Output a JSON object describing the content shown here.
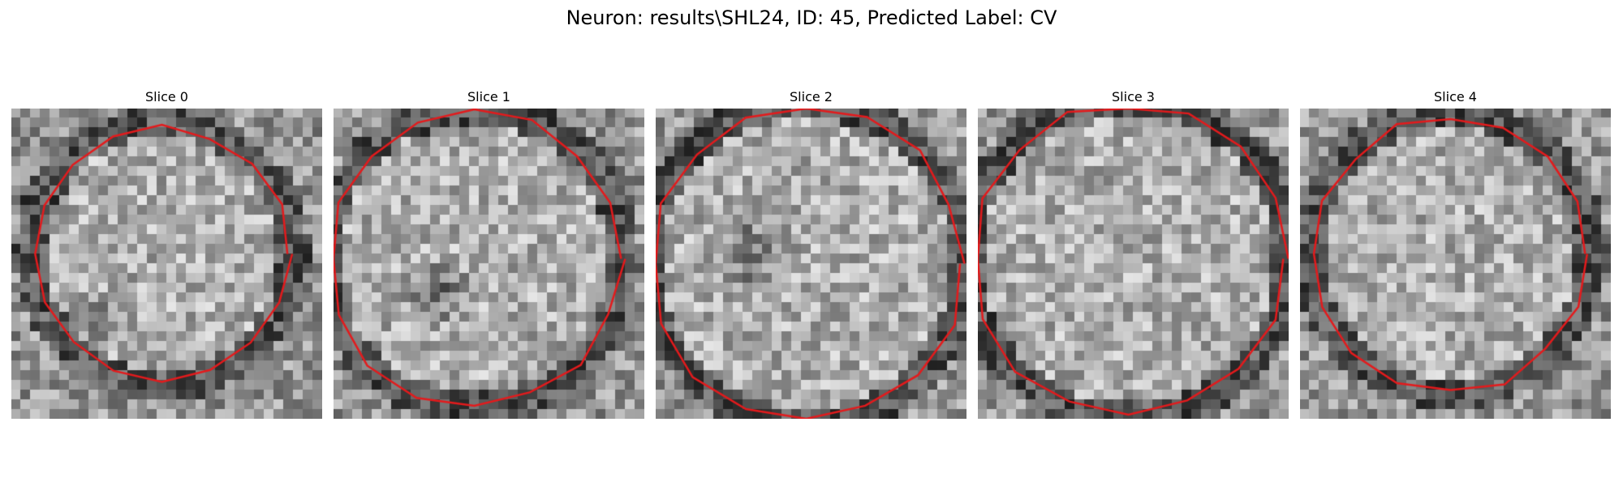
{
  "figure": {
    "title": "Neuron: results\\SHL24, ID: 45, Predicted Label: CV"
  },
  "slices": [
    {
      "label": "Slice 0"
    },
    {
      "label": "Slice 1"
    },
    {
      "label": "Slice 2"
    },
    {
      "label": "Slice 3"
    },
    {
      "label": "Slice 4"
    }
  ],
  "colors": {
    "contour": "#e41a1c",
    "background": "#ffffff"
  }
}
